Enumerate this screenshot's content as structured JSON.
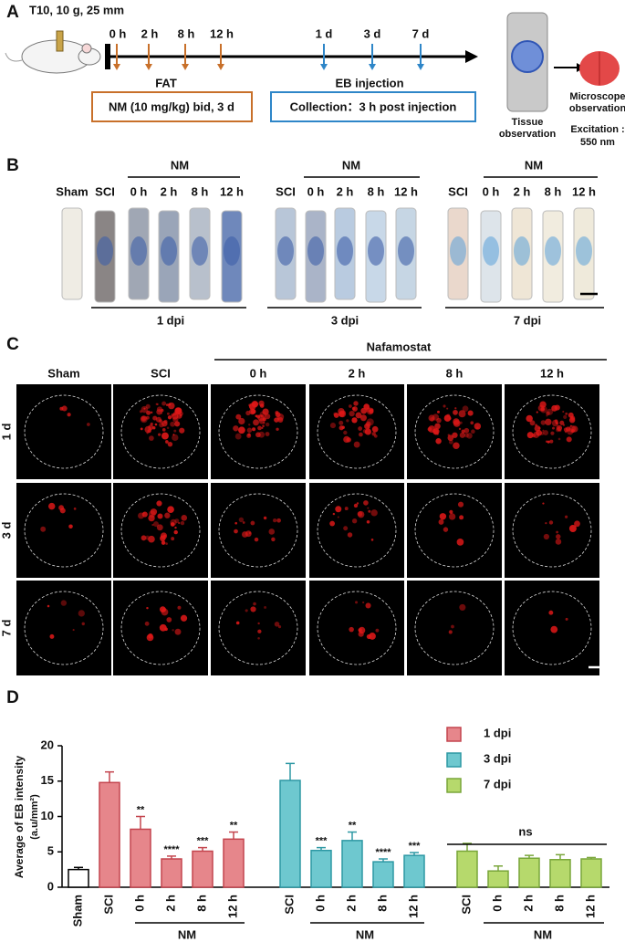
{
  "panel_a": {
    "label": "A",
    "model": "T10, 10 g, 25 mm",
    "time_points": [
      "0 h",
      "2 h",
      "8 h",
      "12 h",
      "1 d",
      "3 d",
      "7 d"
    ],
    "fat": "FAT",
    "eb": "EB injection",
    "treatment": "NM (10 mg/kg) bid, 3 d",
    "collection": "Collection：3 h post injection",
    "tissue": [
      "Tissue",
      "observation"
    ],
    "microscope": [
      "Microscope",
      "observation",
      "Excitation :",
      "550 nm"
    ]
  },
  "panel_b": {
    "label": "B",
    "groups": [
      {
        "header": "NM",
        "samples": [
          "Sham",
          "SCI",
          "0 h",
          "2 h",
          "8 h",
          "12 h"
        ],
        "footer": "1 dpi"
      },
      {
        "header": "NM",
        "samples": [
          "SCI",
          "0 h",
          "2 h",
          "8 h",
          "12 h"
        ],
        "footer": "3 dpi"
      },
      {
        "header": "NM",
        "samples": [
          "SCI",
          "0 h",
          "2 h",
          "8 h",
          "12 h"
        ],
        "footer": "7 dpi"
      }
    ]
  },
  "panel_c": {
    "label": "C",
    "header": "Nafamostat",
    "columns": [
      "Sham",
      "SCI",
      "0 h",
      "2 h",
      "8 h",
      "12 h"
    ],
    "rows": [
      "1 d",
      "3 d",
      "7 d"
    ]
  },
  "chart_data": {
    "type": "bar",
    "label": "D",
    "y_label": [
      "Average of EB intensity",
      "(a.u/mm²)"
    ],
    "categories": [
      "Sham",
      "SCI",
      "0 h",
      "2 h",
      "8 h",
      "12 h",
      "SCI",
      "0 h",
      "2 h",
      "8 h",
      "12 h",
      "SCI",
      "0 h",
      "2 h",
      "8 h",
      "12 h"
    ],
    "series": [
      {
        "color": "#ffffff",
        "edgecolor": "#000000",
        "values": [
          2.5,
          null,
          null,
          null,
          null,
          null,
          null,
          null,
          null,
          null,
          null,
          null,
          null,
          null,
          null,
          null
        ],
        "errors": [
          0.3,
          null,
          null,
          null,
          null,
          null,
          null,
          null,
          null,
          null,
          null,
          null,
          null,
          null,
          null,
          null
        ]
      },
      {
        "name": "1 dpi",
        "color": "#e6868b",
        "edgecolor": "#c4454e",
        "values": [
          null,
          14.8,
          8.2,
          4.0,
          5.1,
          6.8,
          null,
          null,
          null,
          null,
          null,
          null,
          null,
          null,
          null,
          null
        ],
        "errors": [
          null,
          1.5,
          1.8,
          0.4,
          0.5,
          1.0,
          null,
          null,
          null,
          null,
          null,
          null,
          null,
          null,
          null,
          null
        ],
        "significance": [
          null,
          null,
          "**",
          "****",
          "***",
          "**",
          null,
          null,
          null,
          null,
          null,
          null,
          null,
          null,
          null,
          null
        ]
      },
      {
        "name": "3 dpi",
        "color": "#6ec8cf",
        "edgecolor": "#2d98a4",
        "values": [
          null,
          null,
          null,
          null,
          null,
          null,
          15.1,
          5.2,
          6.6,
          3.6,
          4.5,
          null,
          null,
          null,
          null,
          null
        ],
        "errors": [
          null,
          null,
          null,
          null,
          null,
          null,
          2.4,
          0.4,
          1.2,
          0.4,
          0.4,
          null,
          null,
          null,
          null,
          null
        ],
        "significance": [
          null,
          null,
          null,
          null,
          null,
          null,
          null,
          "***",
          "**",
          "****",
          "***",
          null,
          null,
          null,
          null,
          null
        ]
      },
      {
        "name": "7 dpi",
        "color": "#b6d96c",
        "edgecolor": "#79a63a",
        "values": [
          null,
          null,
          null,
          null,
          null,
          null,
          null,
          null,
          null,
          null,
          null,
          5.1,
          2.3,
          4.1,
          3.9,
          4.0
        ],
        "errors": [
          null,
          null,
          null,
          null,
          null,
          null,
          null,
          null,
          null,
          null,
          null,
          1.1,
          0.7,
          0.4,
          0.7,
          0.2
        ]
      }
    ],
    "group_labels": [
      "NM",
      "NM",
      "NM"
    ],
    "group_annotation": "ns",
    "ylim": [
      0,
      20
    ],
    "yticks": [
      0,
      5,
      10,
      15,
      20
    ],
    "legend": "upper right"
  }
}
